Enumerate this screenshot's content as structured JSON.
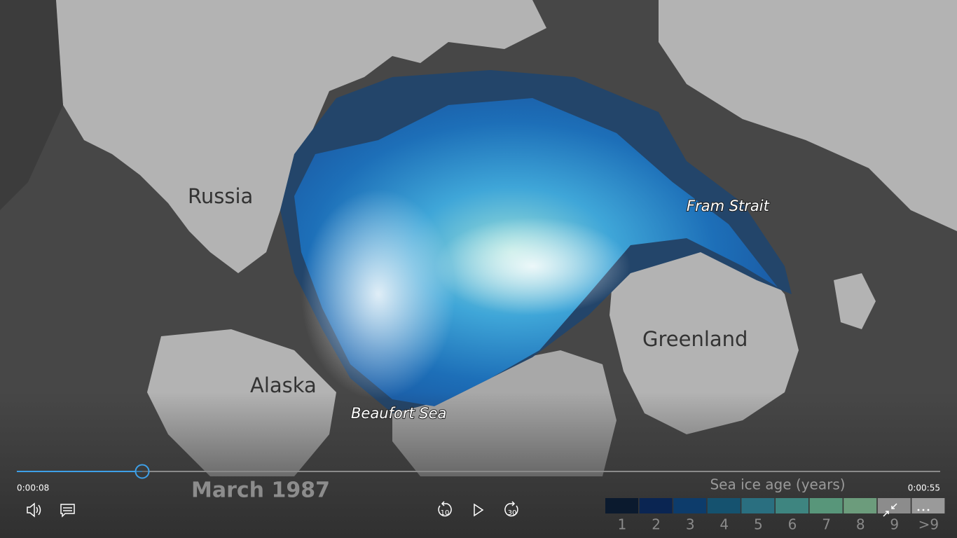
{
  "video": {
    "map_labels": [
      {
        "text": "Russia",
        "style": "plain"
      },
      {
        "text": "Alaska",
        "style": "plain"
      },
      {
        "text": "Greenland",
        "style": "plain"
      },
      {
        "text": "Fram Strait",
        "style": "italic"
      },
      {
        "text": "Beaufort Sea",
        "style": "italic"
      }
    ],
    "date_caption": "March 1987",
    "legend": {
      "title": "Sea ice age (years)",
      "items": [
        {
          "label": "1",
          "color": "#0b1a2e"
        },
        {
          "label": "2",
          "color": "#0a2552"
        },
        {
          "label": "3",
          "color": "#0d3c6b"
        },
        {
          "label": "4",
          "color": "#15526f"
        },
        {
          "label": "5",
          "color": "#2a6f80"
        },
        {
          "label": "6",
          "color": "#3e8580"
        },
        {
          "label": "7",
          "color": "#58967a"
        },
        {
          "label": "8",
          "color": "#6c9c7c"
        },
        {
          "label": "9",
          "color": "#8c8c8c"
        },
        {
          "label": ">9",
          "color": "#9a9a9a"
        }
      ]
    },
    "time_elapsed": "0:00:08",
    "time_total": "0:00:55"
  }
}
